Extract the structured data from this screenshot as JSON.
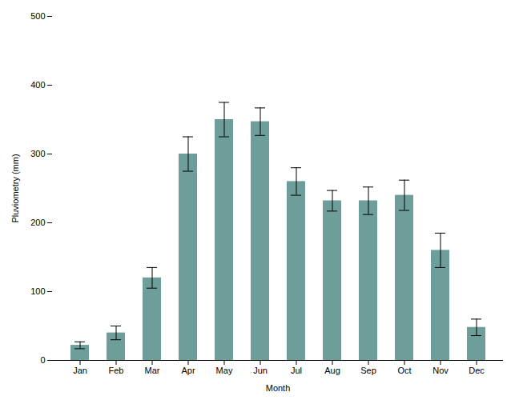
{
  "chart_data": {
    "type": "bar",
    "categories": [
      "Jan",
      "Feb",
      "Mar",
      "Apr",
      "May",
      "Jun",
      "Jul",
      "Aug",
      "Sep",
      "Oct",
      "Nov",
      "Dec"
    ],
    "values": [
      22,
      40,
      120,
      300,
      350,
      347,
      260,
      232,
      232,
      240,
      160,
      48
    ],
    "errors": [
      5,
      10,
      15,
      25,
      25,
      20,
      20,
      15,
      20,
      22,
      25,
      12
    ],
    "color": "#6e9e9a",
    "xlabel": "Month",
    "ylabel": "Pluviometry (mm)",
    "ylim": [
      0,
      500
    ],
    "yticks": [
      0,
      100,
      200,
      300,
      400,
      500
    ],
    "grid": false
  }
}
